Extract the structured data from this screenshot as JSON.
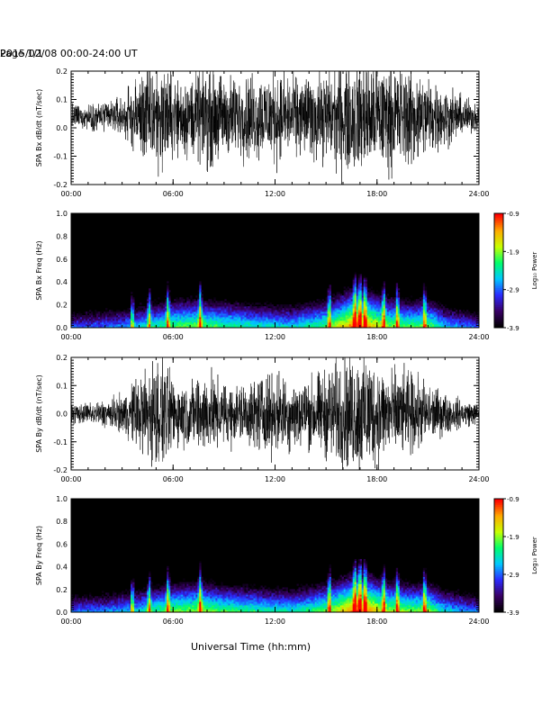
{
  "header": {
    "title": "2015/02/08  00:00-24:00 UT",
    "page": "Page 1/1"
  },
  "footer": {
    "xlabel": "Universal Time (hh:mm)"
  },
  "colorbar": {
    "label": "Log₁₀ Power",
    "ticks": [
      "-0.9",
      "-1.9",
      "-2.9",
      "-3.9"
    ],
    "range": [
      -3.9,
      -0.9
    ],
    "colors": [
      "#000000",
      "#3a0066",
      "#2b2bff",
      "#00c8ff",
      "#00ff6a",
      "#c8ff00",
      "#ffaa00",
      "#ff0000"
    ]
  },
  "chart_data": [
    {
      "type": "line",
      "ylabel": "SPA Bx dB/dt (nT/sec)",
      "xlim": [
        "00:00",
        "24:00"
      ],
      "ylim": [
        -0.2,
        0.2
      ],
      "xticks": [
        "00:00",
        "06:00",
        "12:00",
        "18:00",
        "24:00"
      ],
      "yticks": [
        "-0.2",
        "-0.1",
        "0.0",
        "0.1",
        "0.2"
      ],
      "series": [
        {
          "amplitude_envelope": {
            "x_hours": [
              0,
              1,
              2,
              3,
              3.6,
              4,
              4.5,
              5,
              5.5,
              6,
              7,
              7.5,
              8,
              9,
              10,
              11,
              12,
              13,
              14,
              15,
              16,
              17,
              17.5,
              18,
              19,
              20,
              21,
              22,
              23,
              24
            ],
            "y": [
              0.06,
              0.06,
              0.08,
              0.1,
              0.15,
              0.2,
              0.25,
              0.28,
              0.25,
              0.2,
              0.2,
              0.22,
              0.25,
              0.2,
              0.2,
              0.22,
              0.22,
              0.2,
              0.2,
              0.22,
              0.28,
              0.3,
              0.3,
              0.28,
              0.25,
              0.25,
              0.2,
              0.15,
              0.1,
              0.06
            ]
          },
          "offset": 0.04
        }
      ]
    },
    {
      "type": "heatmap",
      "ylabel": "SPA Bx Freq (Hz)",
      "xlim": [
        "00:00",
        "24:00"
      ],
      "ylim": [
        0.0,
        1.0
      ],
      "xticks": [
        "00:00",
        "06:00",
        "12:00",
        "18:00",
        "24:00"
      ],
      "yticks": [
        "0.0",
        "0.2",
        "0.4",
        "0.6",
        "0.8",
        "1.0"
      ],
      "color_scale": "Log₁₀ Power",
      "vrange": [
        -3.9,
        -0.9
      ],
      "activity_profile": {
        "x_hours": [
          0,
          2,
          3.5,
          5,
          6,
          7.5,
          9,
          11,
          13,
          15,
          16.5,
          17,
          17.5,
          18.5,
          20,
          21,
          22,
          24
        ],
        "log_power_at_0hz": [
          -2.9,
          -2.8,
          -2.6,
          -2.2,
          -2.0,
          -1.9,
          -2.1,
          -2.3,
          -2.4,
          -2.0,
          -1.2,
          -1.1,
          -1.3,
          -1.8,
          -2.0,
          -1.9,
          -2.5,
          -2.9
        ]
      },
      "bursts_hours": [
        3.6,
        4.6,
        5.7,
        7.6,
        15.2,
        16.7,
        17.0,
        17.3,
        18.4,
        19.2,
        20.8
      ]
    },
    {
      "type": "line",
      "ylabel": "SPA By dB/dt (nT/sec)",
      "xlim": [
        "00:00",
        "24:00"
      ],
      "ylim": [
        -0.2,
        0.2
      ],
      "xticks": [
        "00:00",
        "06:00",
        "12:00",
        "18:00",
        "24:00"
      ],
      "yticks": [
        "-0.2",
        "-0.1",
        "0.0",
        "0.1",
        "0.2"
      ],
      "series": [
        {
          "amplitude_envelope": {
            "x_hours": [
              0,
              1,
              2,
              3,
              3.6,
              4,
              4.5,
              5,
              5.5,
              6,
              7,
              7.5,
              8,
              9,
              10,
              11,
              12,
              13,
              14,
              15,
              16,
              17,
              17.5,
              18,
              19,
              20,
              21,
              22,
              23,
              24
            ],
            "y": [
              0.05,
              0.05,
              0.07,
              0.09,
              0.15,
              0.2,
              0.25,
              0.28,
              0.25,
              0.18,
              0.15,
              0.2,
              0.2,
              0.15,
              0.15,
              0.18,
              0.2,
              0.18,
              0.18,
              0.22,
              0.28,
              0.3,
              0.3,
              0.25,
              0.22,
              0.2,
              0.15,
              0.1,
              0.07,
              0.05
            ]
          },
          "offset": 0.0
        }
      ]
    },
    {
      "type": "heatmap",
      "ylabel": "SPA By Freq (Hz)",
      "xlim": [
        "00:00",
        "24:00"
      ],
      "ylim": [
        0.0,
        1.0
      ],
      "xticks": [
        "00:00",
        "06:00",
        "12:00",
        "18:00",
        "24:00"
      ],
      "yticks": [
        "0.0",
        "0.2",
        "0.4",
        "0.6",
        "0.8",
        "1.0"
      ],
      "color_scale": "Log₁₀ Power",
      "vrange": [
        -3.9,
        -0.9
      ],
      "activity_profile": {
        "x_hours": [
          0,
          2,
          3.5,
          5,
          6,
          7.5,
          9,
          11,
          13,
          15,
          16.5,
          17,
          17.5,
          18.5,
          20,
          21,
          22,
          24
        ],
        "log_power_at_0hz": [
          -2.8,
          -2.7,
          -2.5,
          -2.1,
          -1.9,
          -1.8,
          -2.0,
          -2.2,
          -2.3,
          -1.9,
          -1.2,
          -1.0,
          -1.2,
          -1.7,
          -1.9,
          -1.8,
          -2.4,
          -2.8
        ]
      },
      "bursts_hours": [
        3.6,
        4.6,
        5.7,
        7.6,
        15.2,
        16.7,
        17.0,
        17.3,
        18.4,
        19.2,
        20.8
      ]
    }
  ]
}
